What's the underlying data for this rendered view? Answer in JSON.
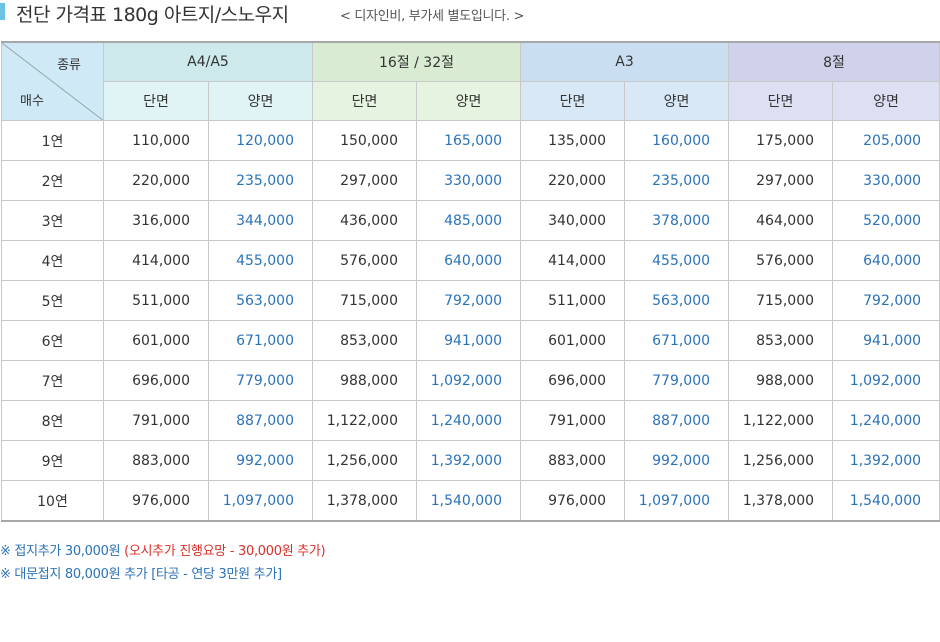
{
  "header": {
    "title": "전단 가격표 180g 아트지/스노우지",
    "subtitle": "< 디자인비, 부가세 별도입니다. >"
  },
  "table": {
    "corner": {
      "top": "종류",
      "bottom": "매수"
    },
    "groups": [
      "A4/A5",
      "16절 / 32절",
      "A3",
      "8절"
    ],
    "sub_headers": [
      "단면",
      "양면"
    ],
    "rows": [
      {
        "qty": "1연",
        "values": [
          "110,000",
          "120,000",
          "150,000",
          "165,000",
          "135,000",
          "160,000",
          "175,000",
          "205,000"
        ]
      },
      {
        "qty": "2연",
        "values": [
          "220,000",
          "235,000",
          "297,000",
          "330,000",
          "220,000",
          "235,000",
          "297,000",
          "330,000"
        ]
      },
      {
        "qty": "3연",
        "values": [
          "316,000",
          "344,000",
          "436,000",
          "485,000",
          "340,000",
          "378,000",
          "464,000",
          "520,000"
        ]
      },
      {
        "qty": "4연",
        "values": [
          "414,000",
          "455,000",
          "576,000",
          "640,000",
          "414,000",
          "455,000",
          "576,000",
          "640,000"
        ]
      },
      {
        "qty": "5연",
        "values": [
          "511,000",
          "563,000",
          "715,000",
          "792,000",
          "511,000",
          "563,000",
          "715,000",
          "792,000"
        ]
      },
      {
        "qty": "6연",
        "values": [
          "601,000",
          "671,000",
          "853,000",
          "941,000",
          "601,000",
          "671,000",
          "853,000",
          "941,000"
        ]
      },
      {
        "qty": "7연",
        "values": [
          "696,000",
          "779,000",
          "988,000",
          "1,092,000",
          "696,000",
          "779,000",
          "988,000",
          "1,092,000"
        ]
      },
      {
        "qty": "8연",
        "values": [
          "791,000",
          "887,000",
          "1,122,000",
          "1,240,000",
          "791,000",
          "887,000",
          "1,122,000",
          "1,240,000"
        ]
      },
      {
        "qty": "9연",
        "values": [
          "883,000",
          "992,000",
          "1,256,000",
          "1,392,000",
          "883,000",
          "992,000",
          "1,256,000",
          "1,392,000"
        ]
      },
      {
        "qty": "10연",
        "values": [
          "976,000",
          "1,097,000",
          "1,378,000",
          "1,540,000",
          "976,000",
          "1,097,000",
          "1,378,000",
          "1,540,000"
        ]
      }
    ]
  },
  "notes": {
    "line1_main": "※ 접지추가 30,000원 ",
    "line1_red": "(오시추가 진행요망 - 30,000원 추가)",
    "line2": "※ 대문접지 80,000원 추가 [타공 - 연당 3만원 추가]"
  },
  "colors": {
    "accent_bar": "#6cc3e2",
    "double_sided_text": "#2b72b8",
    "warning_text": "#d9302a"
  }
}
